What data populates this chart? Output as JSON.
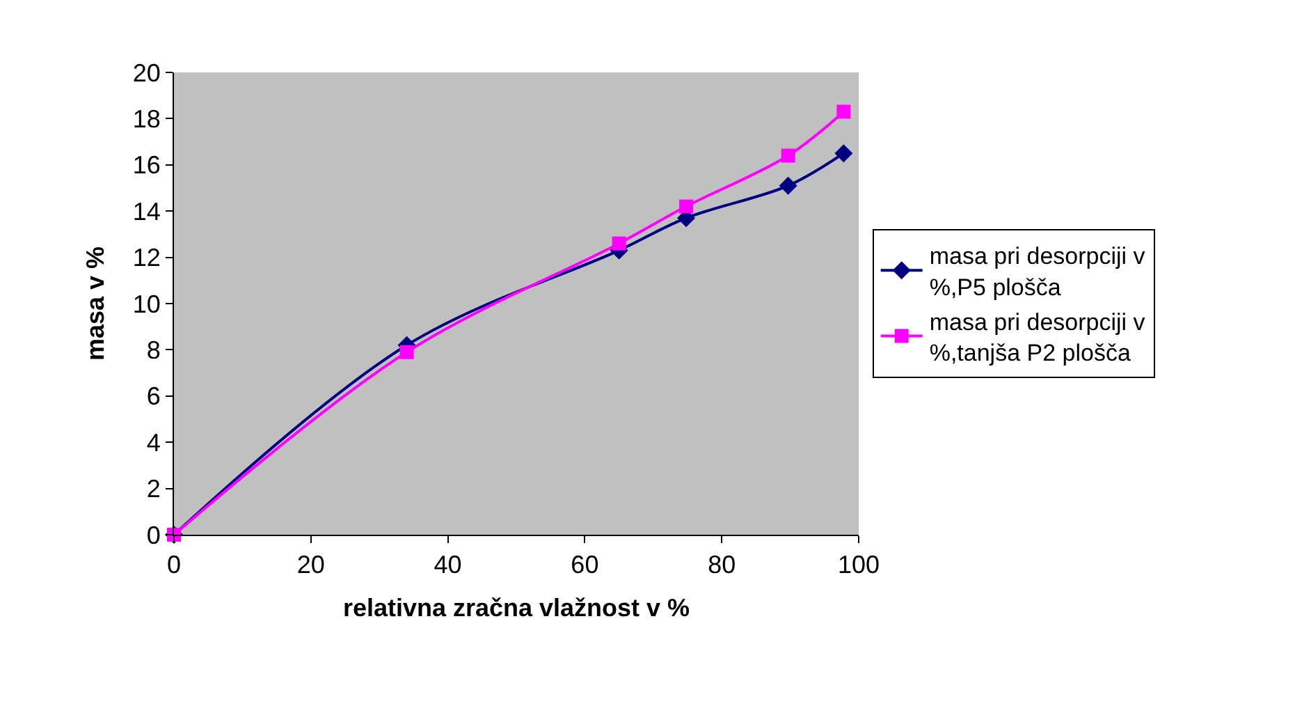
{
  "chart_data": {
    "type": "line",
    "xlabel": "relativna zračna vlažnost v %",
    "ylabel": "masa v %",
    "xlim": [
      0,
      100
    ],
    "xticks": [
      0,
      20,
      40,
      60,
      80,
      100
    ],
    "ylim": [
      0,
      20
    ],
    "yticks": [
      0,
      2,
      4,
      6,
      8,
      10,
      12,
      14,
      16,
      18,
      20
    ],
    "grid": false,
    "legend": "right",
    "series": [
      {
        "name": "masa pri desorpciji v %,P5 plošča",
        "color": "#000080",
        "marker": "diamond",
        "x": [
          0,
          34,
          65,
          74.8,
          89.7,
          97.8
        ],
        "values": [
          0,
          8.2,
          12.3,
          13.7,
          15.1,
          16.5
        ]
      },
      {
        "name": "masa pri desorpciji v %,tanjša P2 plošča",
        "color": "#ff00ff",
        "marker": "square",
        "x": [
          0,
          34,
          65,
          74.8,
          89.7,
          97.8
        ],
        "values": [
          0,
          7.9,
          12.6,
          14.2,
          16.4,
          18.3
        ]
      }
    ]
  }
}
